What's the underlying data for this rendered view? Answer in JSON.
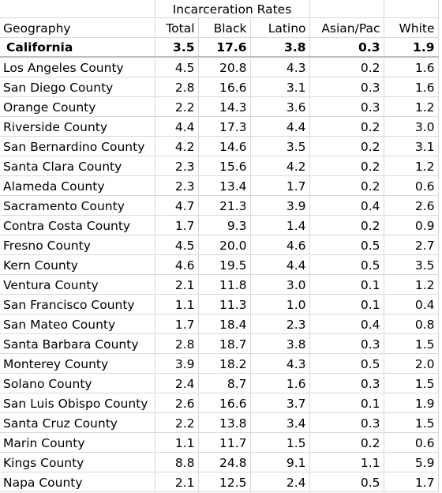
{
  "header": {
    "group_label": "Incarceration Rates",
    "columns": [
      "Geography",
      "Total",
      "Black",
      "Latino",
      "Asian/Pac",
      "White"
    ]
  },
  "state": {
    "name": "California",
    "values": [
      "3.5",
      "17.6",
      "3.8",
      "0.3",
      "1.9"
    ]
  },
  "rows": [
    {
      "name": "Los Angeles County",
      "values": [
        "4.5",
        "20.8",
        "4.3",
        "0.2",
        "1.6"
      ]
    },
    {
      "name": "San Diego County",
      "values": [
        "2.8",
        "16.6",
        "3.1",
        "0.3",
        "1.6"
      ]
    },
    {
      "name": "Orange County",
      "values": [
        "2.2",
        "14.3",
        "3.6",
        "0.3",
        "1.2"
      ]
    },
    {
      "name": "Riverside County",
      "values": [
        "4.4",
        "17.3",
        "4.4",
        "0.2",
        "3.0"
      ]
    },
    {
      "name": "San Bernardino County",
      "values": [
        "4.2",
        "14.6",
        "3.5",
        "0.2",
        "3.1"
      ]
    },
    {
      "name": "Santa Clara County",
      "values": [
        "2.3",
        "15.6",
        "4.2",
        "0.2",
        "1.2"
      ]
    },
    {
      "name": "Alameda County",
      "values": [
        "2.3",
        "13.4",
        "1.7",
        "0.2",
        "0.6"
      ]
    },
    {
      "name": "Sacramento County",
      "values": [
        "4.7",
        "21.3",
        "3.9",
        "0.4",
        "2.6"
      ]
    },
    {
      "name": "Contra Costa County",
      "values": [
        "1.7",
        "9.3",
        "1.4",
        "0.2",
        "0.9"
      ]
    },
    {
      "name": "Fresno County",
      "values": [
        "4.5",
        "20.0",
        "4.6",
        "0.5",
        "2.7"
      ]
    },
    {
      "name": "Kern County",
      "values": [
        "4.6",
        "19.5",
        "4.4",
        "0.5",
        "3.5"
      ]
    },
    {
      "name": "Ventura County",
      "values": [
        "2.1",
        "11.8",
        "3.0",
        "0.1",
        "1.2"
      ]
    },
    {
      "name": "San Francisco County",
      "values": [
        "1.1",
        "11.3",
        "1.0",
        "0.1",
        "0.4"
      ]
    },
    {
      "name": "San Mateo County",
      "values": [
        "1.7",
        "18.4",
        "2.3",
        "0.4",
        "0.8"
      ]
    },
    {
      "name": "Santa Barbara County",
      "values": [
        "2.8",
        "18.7",
        "3.8",
        "0.3",
        "1.5"
      ]
    },
    {
      "name": "Monterey County",
      "values": [
        "3.9",
        "18.2",
        "4.3",
        "0.5",
        "2.0"
      ]
    },
    {
      "name": "Solano County",
      "values": [
        "2.4",
        "8.7",
        "1.6",
        "0.3",
        "1.5"
      ]
    },
    {
      "name": "San Luis Obispo County",
      "values": [
        "2.6",
        "16.6",
        "3.7",
        "0.1",
        "1.9"
      ]
    },
    {
      "name": "Santa Cruz County",
      "values": [
        "2.2",
        "13.8",
        "3.4",
        "0.3",
        "1.5"
      ]
    },
    {
      "name": "Marin County",
      "values": [
        "1.1",
        "11.7",
        "1.5",
        "0.2",
        "0.6"
      ]
    },
    {
      "name": "Kings County",
      "values": [
        "8.8",
        "24.8",
        "9.1",
        "1.1",
        "5.9"
      ]
    },
    {
      "name": "Napa County",
      "values": [
        "2.1",
        "12.5",
        "2.4",
        "0.5",
        "1.7"
      ]
    }
  ]
}
